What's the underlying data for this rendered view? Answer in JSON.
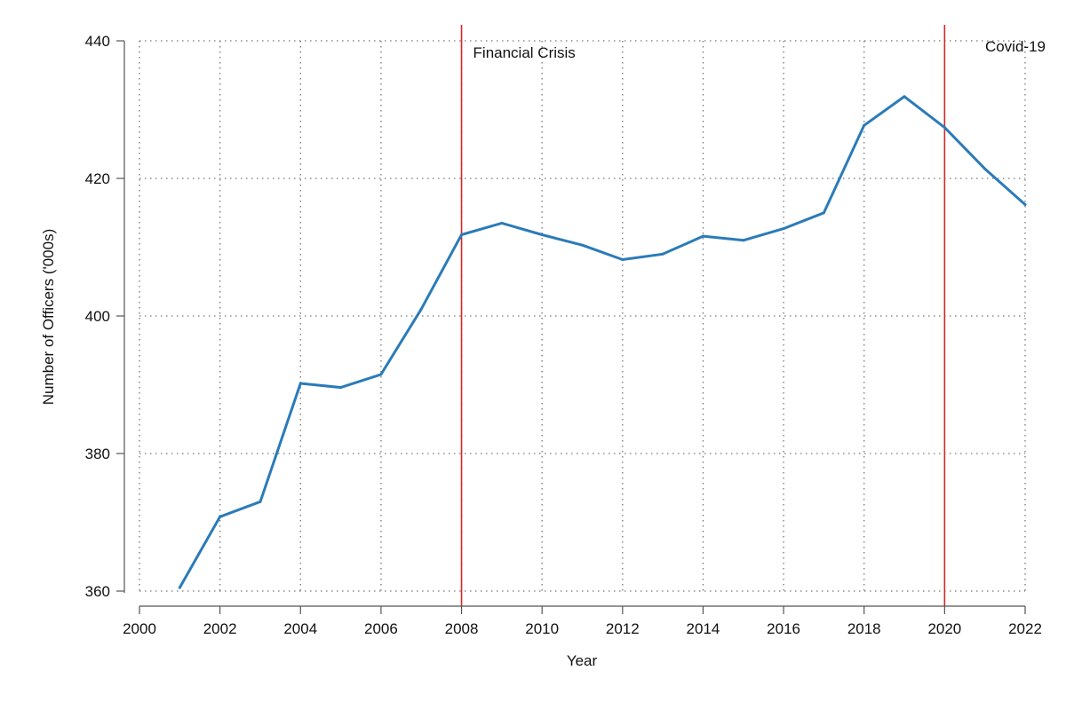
{
  "chart_data": {
    "type": "line",
    "xlabel": "Year",
    "ylabel": "Number of Officers ('000s)",
    "xlim": [
      2000,
      2022
    ],
    "ylim": [
      360,
      440
    ],
    "x_ticks": [
      2000,
      2002,
      2004,
      2006,
      2008,
      2010,
      2012,
      2014,
      2016,
      2018,
      2020,
      2022
    ],
    "y_ticks": [
      360,
      380,
      400,
      420,
      440
    ],
    "grid": true,
    "series": [
      {
        "color": "#2b7bb9",
        "x": [
          2001,
          2002,
          2003,
          2004,
          2005,
          2006,
          2007,
          2008,
          2009,
          2010,
          2011,
          2012,
          2013,
          2014,
          2015,
          2016,
          2017,
          2018,
          2019,
          2020,
          2021,
          2022
        ],
        "values": [
          360.5,
          370.8,
          373.0,
          390.2,
          389.6,
          391.5,
          401.0,
          411.8,
          413.5,
          411.8,
          410.3,
          408.2,
          409.0,
          411.6,
          411.0,
          412.7,
          415.0,
          427.7,
          431.9,
          427.4,
          421.4,
          416.2
        ]
      }
    ],
    "events": [
      {
        "x": 2008,
        "label": "Financial Crisis",
        "color": "#d62728"
      },
      {
        "x": 2020,
        "label": "Covid-19",
        "color": "#d62728"
      }
    ]
  }
}
